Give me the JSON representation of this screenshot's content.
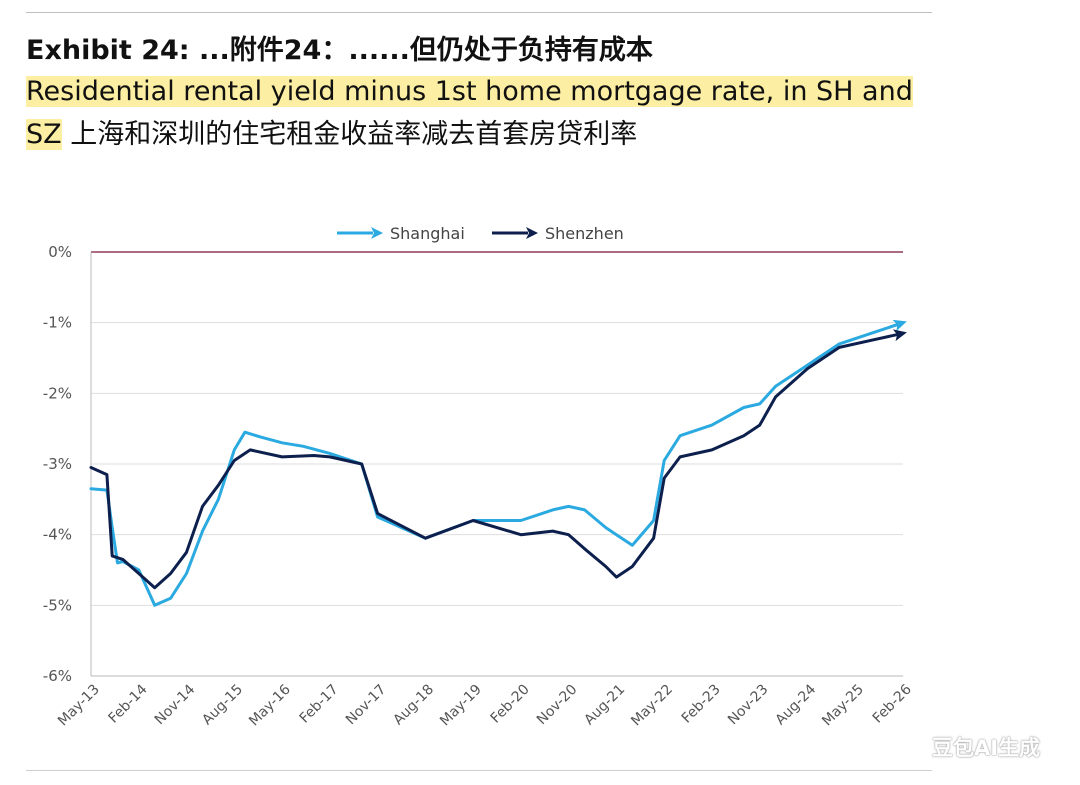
{
  "header": {
    "title": "Exhibit 24: ...附件24：......但仍处于负持有成本",
    "subtitle_en": "Residential rental yield minus 1st home mortgage rate, in SH and SZ",
    "subtitle_cn": "上海和深圳的住宅租金收益率减去首套房贷利率"
  },
  "watermark": "豆包AI生成",
  "chart_data": {
    "type": "line",
    "title": "",
    "xlabel": "",
    "ylabel": "",
    "x_ticks": [
      "May-13",
      "Feb-14",
      "Nov-14",
      "Aug-15",
      "May-16",
      "Feb-17",
      "Nov-17",
      "Aug-18",
      "May-19",
      "Feb-20",
      "Nov-20",
      "Aug-21",
      "May-22",
      "Feb-23",
      "Nov-23",
      "Aug-24",
      "May-25",
      "Feb-26"
    ],
    "y_ticks": [
      "0%",
      "-1%",
      "-2%",
      "-3%",
      "-4%",
      "-5%",
      "-6%"
    ],
    "ylim": [
      -6,
      0
    ],
    "xlim": [
      "May-13",
      "Feb-26"
    ],
    "legend_position": "top-center",
    "grid": true,
    "zero_line": true,
    "series": [
      {
        "name": "Shanghai",
        "color": "#2aaae0",
        "x": [
          "May-13",
          "Aug-13",
          "Sep-13",
          "Oct-13",
          "Nov-13",
          "Feb-14",
          "May-14",
          "Aug-14",
          "Nov-14",
          "Feb-15",
          "May-15",
          "Aug-15",
          "Oct-15",
          "Jan-16",
          "May-16",
          "Sep-16",
          "Feb-17",
          "Aug-17",
          "Nov-17",
          "Aug-18",
          "May-19",
          "Feb-20",
          "Aug-20",
          "Nov-20",
          "Feb-21",
          "Jun-21",
          "Aug-21",
          "Nov-21",
          "Mar-22",
          "May-22",
          "Aug-22",
          "Feb-23",
          "Aug-23",
          "Nov-23",
          "Feb-24",
          "Aug-24",
          "Feb-25",
          "Aug-25",
          "Feb-26"
        ],
        "values": [
          -3.35,
          -3.37,
          -3.9,
          -4.4,
          -4.38,
          -4.5,
          -5.0,
          -4.9,
          -4.55,
          -3.95,
          -3.5,
          -2.8,
          -2.55,
          -2.62,
          -2.7,
          -2.75,
          -2.85,
          -3.0,
          -3.75,
          -4.05,
          -3.8,
          -3.8,
          -3.65,
          -3.6,
          -3.65,
          -3.9,
          -4.0,
          -4.15,
          -3.8,
          -2.95,
          -2.6,
          -2.45,
          -2.2,
          -2.15,
          -1.9,
          -1.6,
          -1.3,
          -1.15,
          -1.0
        ]
      },
      {
        "name": "Shenzhen",
        "color": "#0d1f4d",
        "x": [
          "May-13",
          "Aug-13",
          "Sep-13",
          "Nov-13",
          "Feb-14",
          "May-14",
          "Aug-14",
          "Nov-14",
          "Feb-15",
          "May-15",
          "Aug-15",
          "Nov-15",
          "May-16",
          "Nov-16",
          "Feb-17",
          "Aug-17",
          "Nov-17",
          "Aug-18",
          "May-19",
          "Feb-20",
          "Aug-20",
          "Nov-20",
          "Feb-21",
          "Jun-21",
          "Aug-21",
          "Nov-21",
          "Mar-22",
          "May-22",
          "Aug-22",
          "Feb-23",
          "Aug-23",
          "Nov-23",
          "Feb-24",
          "Aug-24",
          "Feb-25",
          "Aug-25",
          "Feb-26"
        ],
        "values": [
          -3.05,
          -3.15,
          -4.3,
          -4.35,
          -4.55,
          -4.75,
          -4.55,
          -4.25,
          -3.6,
          -3.3,
          -2.95,
          -2.8,
          -2.9,
          -2.88,
          -2.9,
          -3.0,
          -3.7,
          -4.05,
          -3.8,
          -4.0,
          -3.95,
          -4.0,
          -4.2,
          -4.45,
          -4.6,
          -4.45,
          -4.05,
          -3.2,
          -2.9,
          -2.8,
          -2.6,
          -2.45,
          -2.05,
          -1.65,
          -1.35,
          -1.25,
          -1.15
        ]
      }
    ]
  }
}
